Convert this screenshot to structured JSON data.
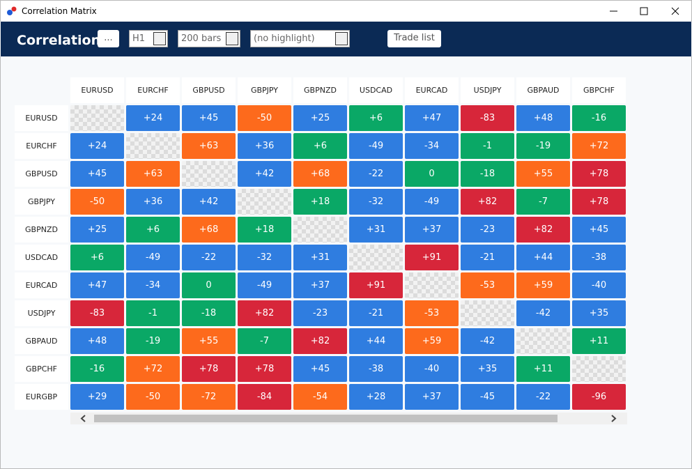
{
  "window": {
    "title": "Correlation Matrix"
  },
  "toolbar": {
    "title": "Correlation",
    "menu_button": "...",
    "timeframe": "H1",
    "bars": "200 bars",
    "highlight": "(no highlight)",
    "trade_list": "Trade list"
  },
  "table": {
    "columns": [
      "EURUSD",
      "EURCHF",
      "GBPUSD",
      "GBPJPY",
      "GBPNZD",
      "USDCAD",
      "EURCAD",
      "USDJPY",
      "GBPAUD",
      "GBPCHF"
    ],
    "rows": [
      {
        "label": "EURUSD",
        "cells": [
          null,
          "+24",
          "+45",
          "-50",
          "+25",
          "+6",
          "+47",
          "-83",
          "+48",
          "-16"
        ]
      },
      {
        "label": "EURCHF",
        "cells": [
          "+24",
          null,
          "+63",
          "+36",
          "+6",
          "-49",
          "-34",
          "-1",
          "-19",
          "+72"
        ]
      },
      {
        "label": "GBPUSD",
        "cells": [
          "+45",
          "+63",
          null,
          "+42",
          "+68",
          "-22",
          "0",
          "-18",
          "+55",
          "+78"
        ]
      },
      {
        "label": "GBPJPY",
        "cells": [
          "-50",
          "+36",
          "+42",
          null,
          "+18",
          "-32",
          "-49",
          "+82",
          "-7",
          "+78"
        ]
      },
      {
        "label": "GBPNZD",
        "cells": [
          "+25",
          "+6",
          "+68",
          "+18",
          null,
          "+31",
          "+37",
          "-23",
          "+82",
          "+45"
        ]
      },
      {
        "label": "USDCAD",
        "cells": [
          "+6",
          "-49",
          "-22",
          "-32",
          "+31",
          null,
          "+91",
          "-21",
          "+44",
          "-38"
        ]
      },
      {
        "label": "EURCAD",
        "cells": [
          "+47",
          "-34",
          "0",
          "-49",
          "+37",
          "+91",
          null,
          "-53",
          "+59",
          "-40"
        ]
      },
      {
        "label": "USDJPY",
        "cells": [
          "-83",
          "-1",
          "-18",
          "+82",
          "-23",
          "-21",
          "-53",
          null,
          "-42",
          "+35"
        ]
      },
      {
        "label": "GBPAUD",
        "cells": [
          "+48",
          "-19",
          "+55",
          "-7",
          "+82",
          "+44",
          "+59",
          "-42",
          null,
          "+11"
        ]
      },
      {
        "label": "GBPCHF",
        "cells": [
          "-16",
          "+72",
          "+78",
          "+78",
          "+45",
          "-38",
          "-40",
          "+35",
          "+11",
          null
        ]
      },
      {
        "label": "EURGBP",
        "cells": [
          "+29",
          "-50",
          "-72",
          "-84",
          "-54",
          "+28",
          "+37",
          "-45",
          "-22",
          "-96"
        ]
      }
    ]
  }
}
